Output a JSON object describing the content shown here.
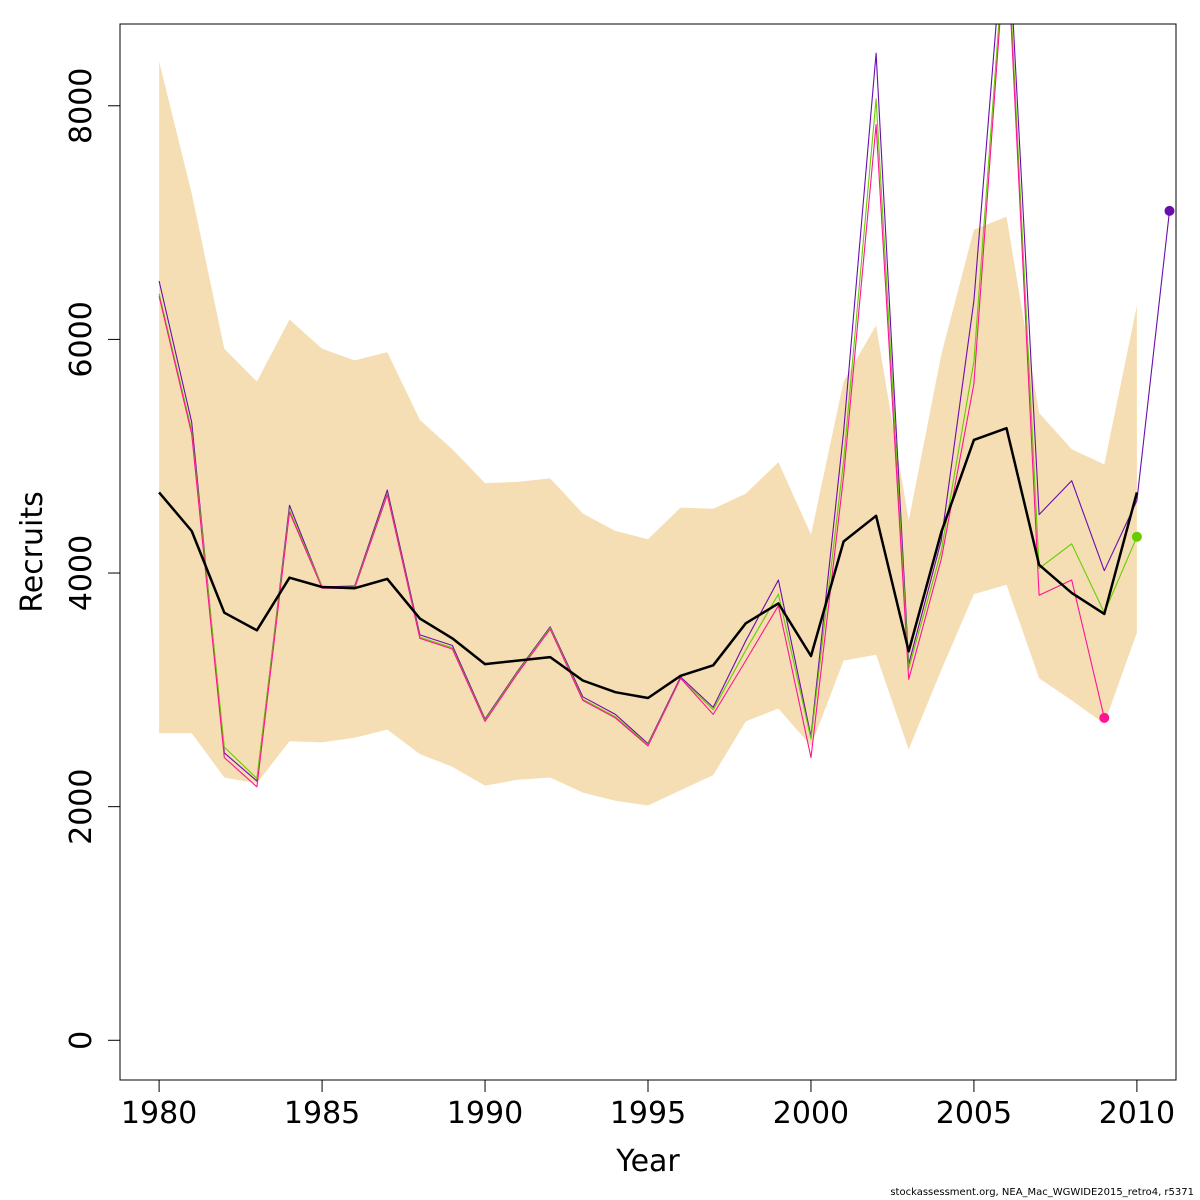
{
  "chart_data": {
    "type": "line",
    "xlabel": "Year",
    "ylabel": "Recruits",
    "xlim": [
      1978.8,
      2011.2
    ],
    "ylim": [
      -340,
      8700
    ],
    "x_ticks": [
      1980,
      1985,
      1990,
      1995,
      2000,
      2005,
      2010
    ],
    "y_ticks": [
      0,
      2000,
      4000,
      6000,
      8000
    ],
    "grid": false,
    "legend": "none",
    "band": {
      "color": "#f5deb3",
      "x": [
        1980,
        1981,
        1982,
        1983,
        1984,
        1985,
        1986,
        1987,
        1988,
        1989,
        1990,
        1991,
        1992,
        1993,
        1994,
        1995,
        1996,
        1997,
        1998,
        1999,
        2000,
        2001,
        2002,
        2003,
        2004,
        2005,
        2006,
        2007,
        2008,
        2009,
        2010
      ],
      "upper": [
        8380,
        7250,
        5920,
        5640,
        6170,
        5920,
        5820,
        5890,
        5310,
        5060,
        4770,
        4780,
        4810,
        4510,
        4360,
        4290,
        4560,
        4550,
        4680,
        4950,
        4330,
        5640,
        6120,
        4450,
        5870,
        6940,
        7050,
        5370,
        5060,
        4930,
        6290
      ],
      "lower": [
        2630,
        2630,
        2250,
        2200,
        2560,
        2550,
        2590,
        2660,
        2450,
        2340,
        2180,
        2230,
        2250,
        2120,
        2050,
        2010,
        2140,
        2270,
        2730,
        2840,
        2520,
        3250,
        3300,
        2490,
        3170,
        3820,
        3900,
        3100,
        2910,
        2710,
        3490
      ]
    },
    "series": [
      {
        "color": "#000000",
        "width": 2.5,
        "x": [
          1980,
          1981,
          1982,
          1983,
          1984,
          1985,
          1986,
          1987,
          1988,
          1989,
          1990,
          1991,
          1992,
          1993,
          1994,
          1995,
          1996,
          1997,
          1998,
          1999,
          2000,
          2001,
          2002,
          2003,
          2004,
          2005,
          2006,
          2007,
          2008,
          2009,
          2010
        ],
        "values": [
          4690,
          4360,
          3660,
          3510,
          3960,
          3880,
          3870,
          3950,
          3610,
          3440,
          3220,
          3250,
          3280,
          3080,
          2980,
          2930,
          3120,
          3210,
          3570,
          3740,
          3290,
          4270,
          4490,
          3330,
          4350,
          5140,
          5240,
          4070,
          3830,
          3650,
          4690
        ]
      },
      {
        "color": "#6a0dad",
        "width": 1.1,
        "endpoint": true,
        "x": [
          1980,
          1981,
          1982,
          1983,
          1984,
          1985,
          1986,
          1987,
          1988,
          1989,
          1990,
          1991,
          1992,
          1993,
          1994,
          1995,
          1996,
          1997,
          1998,
          1999,
          2000,
          2001,
          2002,
          2003,
          2004,
          2005,
          2006,
          2007,
          2008,
          2009,
          2010,
          2011
        ],
        "values": [
          6500,
          5290,
          2460,
          2220,
          4580,
          3880,
          3890,
          4710,
          3470,
          3380,
          2750,
          3160,
          3540,
          2940,
          2790,
          2540,
          3110,
          2850,
          3420,
          3940,
          2600,
          5210,
          8450,
          3220,
          4280,
          6330,
          9800,
          4500,
          4790,
          4020,
          4620,
          7100
        ]
      },
      {
        "color": "#66cc00",
        "width": 1.1,
        "endpoint": true,
        "x": [
          1980,
          1981,
          1982,
          1983,
          1984,
          1985,
          1986,
          1987,
          1988,
          1989,
          1990,
          1991,
          1992,
          1993,
          1994,
          1995,
          1996,
          1997,
          1998,
          1999,
          2000,
          2001,
          2002,
          2003,
          2004,
          2005,
          2006,
          2007,
          2008,
          2009,
          2010
        ],
        "values": [
          6390,
          5220,
          2510,
          2240,
          4540,
          3880,
          3880,
          4680,
          3450,
          3360,
          2740,
          3150,
          3530,
          2920,
          2770,
          2530,
          3100,
          2830,
          3340,
          3820,
          2580,
          4960,
          8060,
          3180,
          4190,
          5810,
          9600,
          4040,
          4250,
          3660,
          4310
        ]
      },
      {
        "color": "#ff1493",
        "width": 1.1,
        "endpoint": true,
        "x": [
          1980,
          1981,
          1982,
          1983,
          1984,
          1985,
          1986,
          1987,
          1988,
          1989,
          1990,
          1991,
          1992,
          1993,
          1994,
          1995,
          1996,
          1997,
          1998,
          1999,
          2000,
          2001,
          2002,
          2003,
          2004,
          2005,
          2006,
          2007,
          2008,
          2009
        ],
        "values": [
          6370,
          5190,
          2420,
          2170,
          4520,
          3870,
          3870,
          4670,
          3440,
          3350,
          2730,
          3140,
          3520,
          2910,
          2760,
          2520,
          3100,
          2790,
          3250,
          3720,
          2420,
          4830,
          7840,
          3090,
          4120,
          5620,
          9500,
          3810,
          3940,
          2760
        ]
      }
    ]
  },
  "footnote": "stockassessment.org, NEA_Mac_WGWIDE2015_retro4, r5371"
}
